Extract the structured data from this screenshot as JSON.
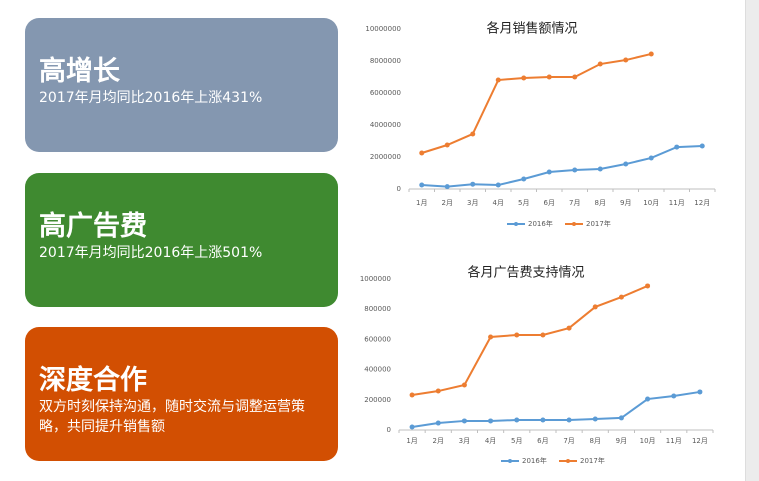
{
  "panels": [
    {
      "title": "高增长",
      "subtitle": "2017年月均同比2016年上涨431%",
      "color": "#8497b0"
    },
    {
      "title": "高广告费",
      "subtitle": "2017年月均同比2016年上涨501%",
      "color": "#3f8a30"
    },
    {
      "title": "深度合作",
      "subtitle": "双方时刻保持沟通，随时交流与调整运营策略，共同提升销售额",
      "color": "#d24f02"
    }
  ],
  "chart_data": [
    {
      "type": "line",
      "title": "各月销售额情况",
      "categories": [
        "1月",
        "2月",
        "3月",
        "4月",
        "5月",
        "6月",
        "7月",
        "8月",
        "9月",
        "10月",
        "11月",
        "12月"
      ],
      "series": [
        {
          "name": "2016年",
          "color": "#5b9bd5",
          "values": [
            250000,
            150000,
            300000,
            250000,
            625000,
            1060000,
            1190000,
            1250000,
            1560000,
            1940000,
            2620000,
            2690000
          ]
        },
        {
          "name": "2017年",
          "color": "#ed7d31",
          "values": [
            2250000,
            2750000,
            3440000,
            6810000,
            6940000,
            7000000,
            7000000,
            7810000,
            8060000,
            8440000,
            null,
            null
          ]
        }
      ],
      "ylim": [
        0,
        10000000
      ],
      "yticks": [
        0,
        2000000,
        4000000,
        6000000,
        8000000,
        10000000
      ],
      "grid": false
    },
    {
      "type": "line",
      "title": "各月广告费支持情况",
      "categories": [
        "1月",
        "2月",
        "3月",
        "4月",
        "5月",
        "6月",
        "7月",
        "8月",
        "9月",
        "10月",
        "11月",
        "12月"
      ],
      "series": [
        {
          "name": "2016年",
          "color": "#5b9bd5",
          "values": [
            20000,
            46000,
            60000,
            60000,
            66000,
            66000,
            66000,
            73000,
            80000,
            205000,
            225000,
            252000
          ]
        },
        {
          "name": "2017年",
          "color": "#ed7d31",
          "values": [
            232000,
            258000,
            298000,
            616000,
            629000,
            629000,
            675000,
            815000,
            880000,
            954000,
            null,
            null
          ]
        }
      ],
      "ylim": [
        0,
        1000000
      ],
      "yticks": [
        0,
        200000,
        400000,
        600000,
        800000,
        1000000
      ],
      "grid": false
    }
  ]
}
